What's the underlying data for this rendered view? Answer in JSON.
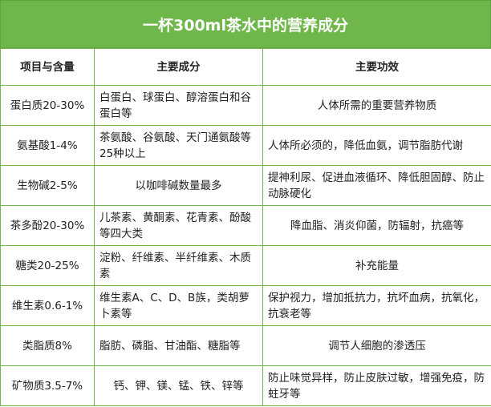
{
  "title": "一杯300ml茶水中的营养成分",
  "headers": [
    "项目与含量",
    "主要成分",
    "主要功效"
  ],
  "rows": [
    {
      "item": "蛋白质20-30%",
      "component": "白蛋白、球蛋白、醇溶蛋白和谷蛋白等",
      "effect": "人体所需的重要营养物质"
    },
    {
      "item": "氨基酸1-4%",
      "component": "茶氨酸、谷氨酸、天门通氨酸等25种以上",
      "effect": "人体所必须的，降低血氨，调节脂肪代谢"
    },
    {
      "item": "生物碱2-5%",
      "component": "以咖啡碱数量最多",
      "effect": "提神利尿、促进血液循环、降低胆固醇、防止动脉硬化"
    },
    {
      "item": "茶多酚20-30%",
      "component": "儿茶素、黄酮素、花青素、酚酸等四大类",
      "effect": "降血脂、消炎仰菌，防辐射，抗癌等"
    },
    {
      "item": "糖类20-25%",
      "component": "淀粉、纤维素、半纤维素、木质素",
      "effect": "补充能量"
    },
    {
      "item": "维生素0.6-1%",
      "component": "维生素A、C、D、B族，类胡萝卜素等",
      "effect": "保护视力，增加抵抗力，抗坏血病，抗氧化，抗衰老等"
    },
    {
      "item": "类脂质8%",
      "component": "脂肪、磷脂、甘油酯、糖脂等",
      "effect": "调节人细胞的渗透压"
    },
    {
      "item": "矿物质3.5-7%",
      "component": "钙、钾、镁、锰、铁、锌等",
      "effect": "防止味觉异样，防止皮肤过敏，增强免疫，防蛀牙等"
    }
  ]
}
